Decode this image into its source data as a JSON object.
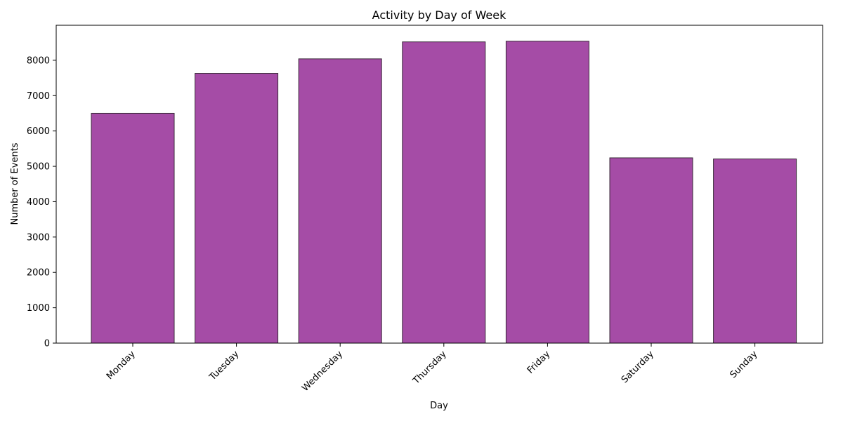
{
  "chart_data": {
    "type": "bar",
    "title": "Activity by Day of Week",
    "xlabel": "Day",
    "ylabel": "Number of Events",
    "categories": [
      "Monday",
      "Tuesday",
      "Wednesday",
      "Thursday",
      "Friday",
      "Saturday",
      "Sunday"
    ],
    "values": [
      6500,
      7630,
      8040,
      8520,
      8540,
      5240,
      5210
    ],
    "ylim": [
      0,
      8990
    ],
    "yticks": [
      0,
      1000,
      2000,
      3000,
      4000,
      5000,
      6000,
      7000,
      8000
    ],
    "grid": false,
    "bar_color": "#a54ca6",
    "bar_edge_color": "#3a2a3a"
  }
}
